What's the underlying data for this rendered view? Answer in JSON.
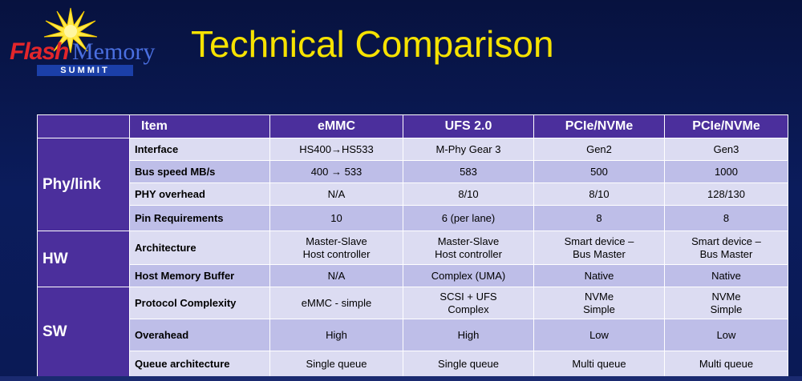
{
  "logo": {
    "flash": "Flash",
    "memory": "Memory",
    "summit": "SUMMIT"
  },
  "title": "Technical Comparison",
  "colors": {
    "title": "#f6e200",
    "header_bg": "#4b2f9c",
    "row_light": "#dcdcf2",
    "row_dark": "#bebee8",
    "background": "#0b1c5c"
  },
  "table": {
    "headers": [
      "",
      "Item",
      "eMMC",
      "UFS 2.0",
      "PCIe/NVMe",
      "PCIe/NVMe"
    ],
    "groups": [
      {
        "name": "Phy/link",
        "rows": [
          {
            "item": "Interface",
            "values": [
              "HS400→HS533",
              "M-Phy Gear 3",
              "Gen2",
              "Gen3"
            ]
          },
          {
            "item": "Bus speed MB/s",
            "values": [
              "400 → 533",
              "583",
              "500",
              "1000"
            ]
          },
          {
            "item": "PHY overhead",
            "values": [
              "N/A",
              "8/10",
              "8/10",
              "128/130"
            ]
          },
          {
            "item": "Pin Requirements",
            "values": [
              "10",
              "6 (per lane)",
              "8",
              "8"
            ]
          }
        ]
      },
      {
        "name": "HW",
        "rows": [
          {
            "item": "Architecture",
            "values": [
              "Master-Slave\nHost controller",
              "Master-Slave\nHost controller",
              "Smart device –\nBus Master",
              "Smart device –\nBus Master"
            ]
          },
          {
            "item": "Host Memory Buffer",
            "values": [
              "N/A",
              "Complex (UMA)",
              "Native",
              "Native"
            ]
          }
        ]
      },
      {
        "name": "SW",
        "rows": [
          {
            "item": "Protocol Complexity",
            "values": [
              "eMMC - simple",
              "SCSI + UFS\nComplex",
              "NVMe\nSimple",
              "NVMe\nSimple"
            ]
          },
          {
            "item": "Overahead",
            "values": [
              "High",
              "High",
              "Low",
              "Low"
            ]
          },
          {
            "item": "Queue architecture",
            "values": [
              "Single queue",
              "Single queue",
              "Multi queue",
              "Multi queue"
            ]
          }
        ]
      }
    ]
  }
}
